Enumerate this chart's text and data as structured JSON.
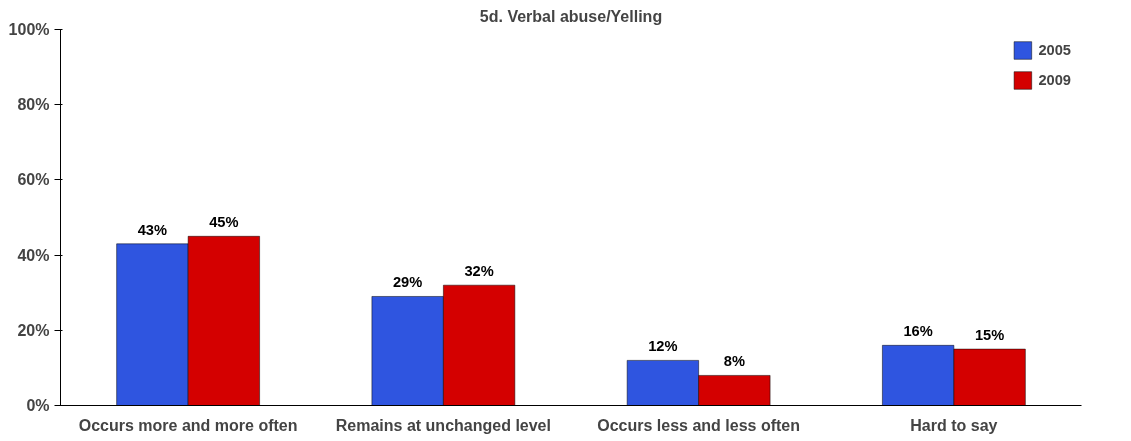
{
  "chart_data": {
    "type": "bar",
    "title": "5d. Verbal abuse/Yelling",
    "categories": [
      "Occurs more and more often",
      "Remains at unchanged level",
      "Occurs less and less often",
      "Hard to say"
    ],
    "series": [
      {
        "name": "2005",
        "color": "#2f55e0",
        "values": [
          43,
          29,
          12,
          16
        ],
        "value_labels": [
          "43%",
          "29%",
          "12%",
          "16%"
        ]
      },
      {
        "name": "2009",
        "color": "#d40000",
        "values": [
          45,
          32,
          8,
          15
        ],
        "value_labels": [
          "45%",
          "32%",
          "8%",
          "15%"
        ]
      }
    ],
    "ylim": [
      0,
      100
    ],
    "yticks": [
      {
        "value": 0,
        "label": "0%"
      },
      {
        "value": 20,
        "label": "20%"
      },
      {
        "value": 40,
        "label": "40%"
      },
      {
        "value": 60,
        "label": "60%"
      },
      {
        "value": 80,
        "label": "80%"
      },
      {
        "value": 100,
        "label": "100%"
      }
    ],
    "grid": false,
    "legend": "top right"
  }
}
